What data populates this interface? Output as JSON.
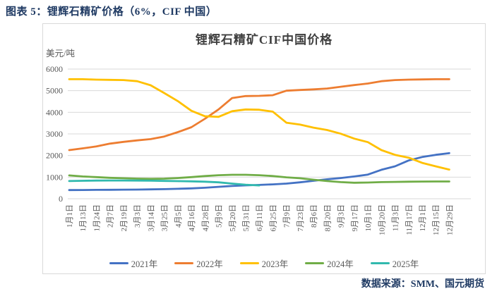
{
  "page": {
    "header": "图表 5：锂辉石精矿价格（6%，CIF 中国）",
    "source_note": "数据来源：SMM、国元期货"
  },
  "colors": {
    "header_text": "#1F3A63",
    "chart_title_text": "#404040",
    "axis_text": "#595959",
    "gridline": "#D9D9D9",
    "card_border": "#D9D9D9",
    "series_2021": "#4472C4",
    "series_2022": "#ED7D31",
    "series_2023": "#FFC000",
    "series_2024": "#70AD47",
    "series_2025": "#31B9AE"
  },
  "chart_data": {
    "type": "line",
    "title": "锂辉石精矿CIF中国价格",
    "y_unit_label": "美元/吨",
    "xlabel": "",
    "ylabel": "美元/吨",
    "ylim": [
      0,
      6000
    ],
    "y_ticks": [
      0,
      1000,
      2000,
      3000,
      4000,
      5000,
      6000
    ],
    "grid": "horizontal",
    "legend_position": "bottom",
    "x_tick_rotation": 90,
    "categories": [
      "1月1日",
      "1月13日",
      "1月24日",
      "2月7日",
      "2月19日",
      "3月3日",
      "3月14日",
      "3月25日",
      "4月5日",
      "4月16日",
      "4月28日",
      "5月9日",
      "5月20日",
      "5月31日",
      "6月11日",
      "6月25日",
      "7月9日",
      "7月23日",
      "8月6日",
      "8月20日",
      "9月3日",
      "9月17日",
      "10月1日",
      "10月20日",
      "11月3日",
      "11月17日",
      "12月1日",
      "12月15日",
      "12月29日"
    ],
    "series": [
      {
        "name": "2021年",
        "color": "#4472C4",
        "values": [
          400,
          405,
          410,
          415,
          420,
          425,
          435,
          445,
          460,
          480,
          510,
          550,
          590,
          620,
          640,
          665,
          700,
          760,
          830,
          900,
          960,
          1030,
          1120,
          1340,
          1500,
          1770,
          1930,
          2030,
          2110
        ]
      },
      {
        "name": "2022年",
        "color": "#ED7D31",
        "values": [
          2250,
          2330,
          2420,
          2550,
          2630,
          2700,
          2760,
          2880,
          3080,
          3310,
          3700,
          4130,
          4660,
          4750,
          4760,
          4790,
          5000,
          5030,
          5060,
          5100,
          5180,
          5260,
          5330,
          5440,
          5490,
          5510,
          5520,
          5530,
          5530
        ]
      },
      {
        "name": "2023年",
        "color": "#FFC000",
        "values": [
          5530,
          5530,
          5510,
          5500,
          5490,
          5440,
          5250,
          4890,
          4520,
          4070,
          3820,
          3790,
          4050,
          4130,
          4120,
          4030,
          3520,
          3430,
          3290,
          3180,
          3010,
          2780,
          2620,
          2250,
          2030,
          1900,
          1660,
          1500,
          1350
        ]
      },
      {
        "name": "2024年",
        "color": "#70AD47",
        "values": [
          1080,
          1030,
          1000,
          970,
          950,
          930,
          920,
          930,
          960,
          1000,
          1050,
          1090,
          1110,
          1110,
          1090,
          1050,
          990,
          950,
          880,
          820,
          770,
          740,
          750,
          770,
          780,
          790,
          795,
          800,
          800
        ]
      },
      {
        "name": "2025年",
        "color": "#31B9AE",
        "values": [
          820,
          830,
          840,
          845,
          845,
          840,
          835,
          825,
          815,
          805,
          790,
          760,
          700,
          650,
          615,
          null,
          null,
          null,
          null,
          null,
          null,
          null,
          null,
          null,
          null,
          null,
          null,
          null,
          null
        ]
      }
    ]
  }
}
